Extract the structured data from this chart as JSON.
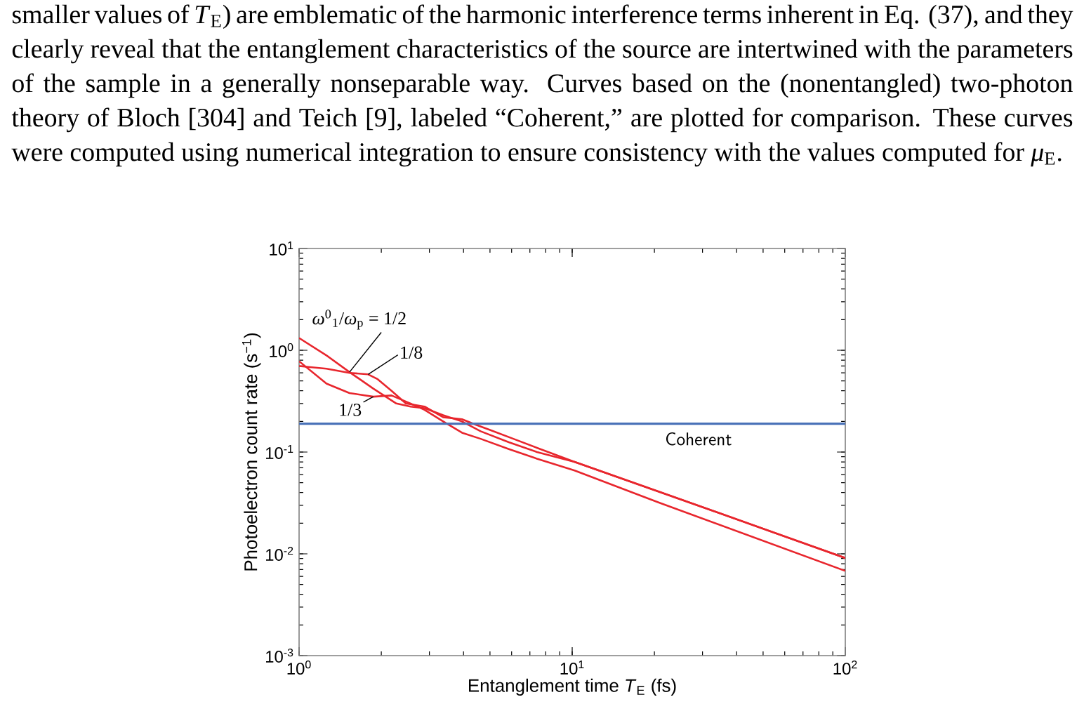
{
  "chart_data": {
    "type": "line",
    "xlabel": "Entanglement time *T*$_{E}$ (fs)",
    "ylabel": "Photoelectron count rate  (s$^{−1}$)",
    "log": "xy",
    "xlim": [
      1,
      100
    ],
    "ylim": [
      0.001,
      10
    ],
    "xticks": [
      {
        "value": 1,
        "label": "10$^{0}$"
      },
      {
        "value": 10,
        "label": "10$^{1}$"
      },
      {
        "value": 100,
        "label": "10$^{2}$"
      }
    ],
    "yticks": [
      {
        "value": 0.001,
        "label": "10$^{-3}$"
      },
      {
        "value": 0.01,
        "label": "10$^{-2}$"
      },
      {
        "value": 0.1,
        "label": "10$^{-1}$"
      },
      {
        "value": 1,
        "label": "10$^{0}$"
      },
      {
        "value": 10,
        "label": "10$^{1}$"
      }
    ],
    "series": [
      {
        "name": "*ω*$^{0}$$_{1}$/*ω*$_{p}$ = 1/2",
        "color": "#e8262d",
        "x": [
          1,
          1.26,
          1.53,
          1.87,
          2.27,
          2.56,
          2.88,
          3.37,
          3.95,
          4.62,
          5.86,
          7.43,
          10.2,
          20.7,
          100
        ],
        "values": [
          1.32,
          0.89,
          0.61,
          0.42,
          0.3,
          0.28,
          0.27,
          0.23,
          0.2,
          0.16,
          0.125,
          0.1,
          0.08,
          0.041,
          0.0091
        ]
      },
      {
        "name": "1/8",
        "color": "#e8262d",
        "x": [
          1,
          1.26,
          1.53,
          1.79,
          1.94,
          2.18,
          2.46,
          2.88,
          3.37,
          3.95,
          4.45,
          5.0,
          6.09,
          7.43,
          10.2,
          20.7,
          100
        ],
        "values": [
          0.7,
          0.66,
          0.6,
          0.58,
          0.52,
          0.4,
          0.3,
          0.28,
          0.22,
          0.21,
          0.185,
          0.165,
          0.135,
          0.11,
          0.08,
          0.041,
          0.0091
        ]
      },
      {
        "name": "1/3",
        "color": "#e8262d",
        "x": [
          1,
          1.26,
          1.53,
          1.87,
          2.18,
          2.56,
          2.88,
          3.37,
          3.95,
          4.62,
          5.86,
          7.43,
          10.2,
          20.7,
          100
        ],
        "values": [
          0.78,
          0.47,
          0.38,
          0.35,
          0.36,
          0.3,
          0.26,
          0.2,
          0.155,
          0.135,
          0.107,
          0.086,
          0.066,
          0.032,
          0.0068
        ]
      },
      {
        "name": "Coherent",
        "color": "#4a72b8",
        "x": [
          1,
          100
        ],
        "values": [
          0.19,
          0.19
        ]
      }
    ],
    "annotations": [
      "smaller values of *T*$_{E}$) are emblematic of the harmonic interference terms inherent in Eq. (37), and they clearly reveal that the entanglement characteristics of the source are intertwined with the parameters of the sample in a generally nonseparable way. Curves based on the (nonentangled) two-photon theory of Bloch [304] and Teich [9], labeled “Coherent,” are plotted for comparison. These curves were computed using numerical integration to ensure consistency with the values computed for *μ*$_{E}$."
    ]
  }
}
